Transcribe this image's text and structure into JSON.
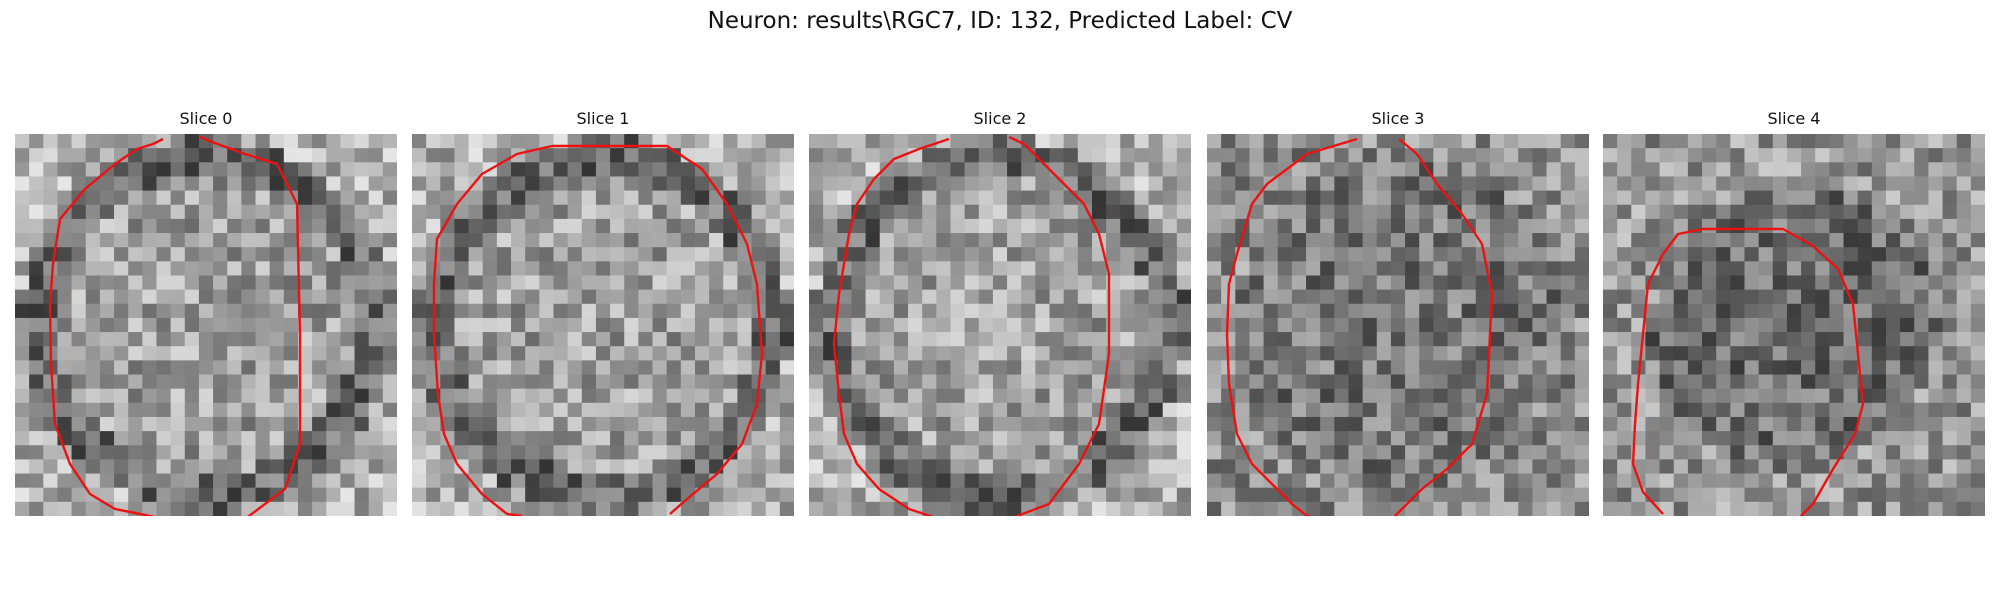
{
  "figure": {
    "title": "Neuron: results\\RGC7, ID: 132, Predicted Label: CV",
    "contour_color": "#ee1111"
  },
  "slices": [
    {
      "title": "Slice 0"
    },
    {
      "title": "Slice 1"
    },
    {
      "title": "Slice 2"
    },
    {
      "title": "Slice 3"
    },
    {
      "title": "Slice 4"
    }
  ]
}
